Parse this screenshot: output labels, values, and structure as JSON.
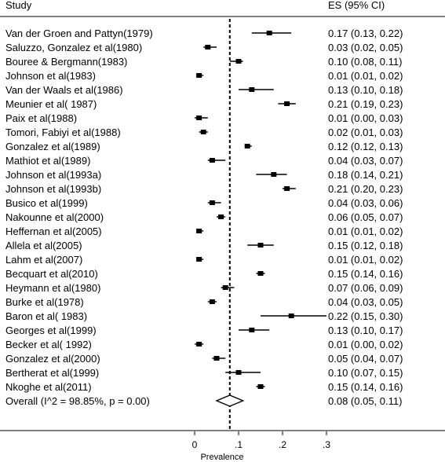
{
  "chart_data": {
    "type": "forest",
    "header_study": "Study",
    "header_es": "ES (95% CI)",
    "xlabel": "Prevalence",
    "xlim": [
      -0.12,
      0.32
    ],
    "ticks": [
      {
        "value": 0,
        "label": "0"
      },
      {
        "value": 0.1,
        "label": ".1"
      },
      {
        "value": 0.2,
        "label": ".2"
      },
      {
        "value": 0.3,
        "label": ".3"
      }
    ],
    "overall_line": 0.08,
    "studies": [
      {
        "label": "Van der Groen and Pattyn(1979)",
        "es": 0.17,
        "lo": 0.13,
        "hi": 0.22,
        "text": "0.17 (0.13, 0.22)"
      },
      {
        "label": "Saluzzo, Gonzalez et al(1980)",
        "es": 0.03,
        "lo": 0.02,
        "hi": 0.05,
        "text": "0.03 (0.02, 0.05)"
      },
      {
        "label": "Bouree & Bergmann(1983)",
        "es": 0.1,
        "lo": 0.08,
        "hi": 0.11,
        "text": "0.10 (0.08, 0.11)"
      },
      {
        "label": "Johnson et al(1983)",
        "es": 0.01,
        "lo": 0.01,
        "hi": 0.02,
        "text": "0.01 (0.01, 0.02)"
      },
      {
        "label": "Van der Waals et al(1986)",
        "es": 0.13,
        "lo": 0.1,
        "hi": 0.18,
        "text": "0.13 (0.10, 0.18)"
      },
      {
        "label": "Meunier et al( 1987)",
        "es": 0.21,
        "lo": 0.19,
        "hi": 0.23,
        "text": "0.21 (0.19, 0.23)"
      },
      {
        "label": "Paix et al(1988)",
        "es": 0.01,
        "lo": 0.0,
        "hi": 0.03,
        "text": "0.01 (0.00, 0.03)"
      },
      {
        "label": "Tomori, Fabiyi et al(1988)",
        "es": 0.02,
        "lo": 0.01,
        "hi": 0.03,
        "text": "0.02 (0.01, 0.03)"
      },
      {
        "label": "Gonzalez et al(1989)",
        "es": 0.12,
        "lo": 0.12,
        "hi": 0.13,
        "text": "0.12 (0.12, 0.13)"
      },
      {
        "label": "Mathiot et al(1989)",
        "es": 0.04,
        "lo": 0.03,
        "hi": 0.07,
        "text": "0.04 (0.03, 0.07)"
      },
      {
        "label": "Johnson et al(1993a)",
        "es": 0.18,
        "lo": 0.14,
        "hi": 0.21,
        "text": "0.18 (0.14, 0.21)"
      },
      {
        "label": "Johnson et al(1993b)",
        "es": 0.21,
        "lo": 0.2,
        "hi": 0.23,
        "text": "0.21 (0.20, 0.23)"
      },
      {
        "label": "Busico et al(1999)",
        "es": 0.04,
        "lo": 0.03,
        "hi": 0.06,
        "text": "0.04 (0.03, 0.06)"
      },
      {
        "label": "Nakounne et al(2000)",
        "es": 0.06,
        "lo": 0.05,
        "hi": 0.07,
        "text": "0.06 (0.05, 0.07)"
      },
      {
        "label": "Heffernan et al(2005)",
        "es": 0.01,
        "lo": 0.01,
        "hi": 0.02,
        "text": "0.01 (0.01, 0.02)"
      },
      {
        "label": "Allela et al(2005)",
        "es": 0.15,
        "lo": 0.12,
        "hi": 0.18,
        "text": "0.15 (0.12, 0.18)"
      },
      {
        "label": "Lahm et al(2007)",
        "es": 0.01,
        "lo": 0.01,
        "hi": 0.02,
        "text": "0.01 (0.01, 0.02)"
      },
      {
        "label": "Becquart et al(2010)",
        "es": 0.15,
        "lo": 0.14,
        "hi": 0.16,
        "text": "0.15 (0.14, 0.16)"
      },
      {
        "label": "Heymann et al(1980)",
        "es": 0.07,
        "lo": 0.06,
        "hi": 0.09,
        "text": "0.07 (0.06, 0.09)"
      },
      {
        "label": "Burke et al(1978)",
        "es": 0.04,
        "lo": 0.03,
        "hi": 0.05,
        "text": "0.04 (0.03, 0.05)"
      },
      {
        "label": "Baron et al( 1983)",
        "es": 0.22,
        "lo": 0.15,
        "hi": 0.3,
        "text": "0.22 (0.15, 0.30)"
      },
      {
        "label": "Georges et al(1999)",
        "es": 0.13,
        "lo": 0.1,
        "hi": 0.17,
        "text": "0.13 (0.10, 0.17)"
      },
      {
        "label": "Becker et al( 1992)",
        "es": 0.01,
        "lo": 0.0,
        "hi": 0.02,
        "text": "0.01 (0.00, 0.02)"
      },
      {
        "label": "Gonzalez et al(2000)",
        "es": 0.05,
        "lo": 0.04,
        "hi": 0.07,
        "text": "0.05 (0.04, 0.07)"
      },
      {
        "label": "Bertherat et al(1999)",
        "es": 0.1,
        "lo": 0.07,
        "hi": 0.15,
        "text": "0.10 (0.07, 0.15)"
      },
      {
        "label": "Nkoghe et al(2011)",
        "es": 0.15,
        "lo": 0.14,
        "hi": 0.16,
        "text": "0.15 (0.14, 0.16)"
      }
    ],
    "overall": {
      "label": "Overall  (I^2 = 98.85%, p = 0.00)",
      "es": 0.08,
      "lo": 0.05,
      "hi": 0.11,
      "text": "0.08 (0.05, 0.11)"
    }
  }
}
